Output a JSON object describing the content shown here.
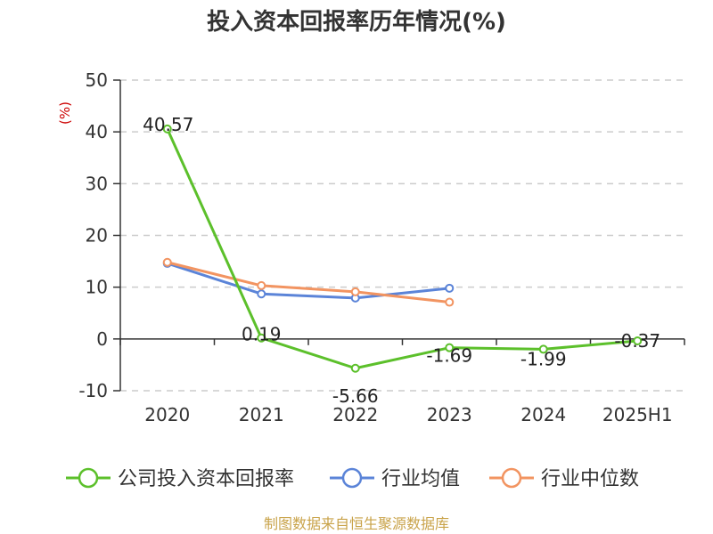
{
  "chart_data": {
    "type": "line",
    "title": "投入资本回报率历年情况(%)",
    "ylabel": "(%)",
    "xlabel": "",
    "categories": [
      "2020",
      "2021",
      "2022",
      "2023",
      "2024",
      "2025H1"
    ],
    "ylim": [
      -10,
      50
    ],
    "yticks": [
      -10,
      0,
      10,
      20,
      30,
      40,
      50
    ],
    "grid": true,
    "legend_position": "bottom",
    "series": [
      {
        "name": "公司投入资本回报率",
        "color": "#5cc02b",
        "values": [
          40.57,
          0.19,
          -5.66,
          -1.69,
          -1.99,
          -0.37
        ],
        "labels": [
          "40.57",
          "0.19",
          "-5.66",
          "-1.69",
          "-1.99",
          "-0.37"
        ]
      },
      {
        "name": "行业均值",
        "color": "#5b84d8",
        "values": [
          14.6,
          8.7,
          7.9,
          9.8,
          null,
          null
        ]
      },
      {
        "name": "行业中位数",
        "color": "#f29461",
        "values": [
          14.8,
          10.3,
          9.1,
          7.1,
          null,
          null
        ]
      }
    ],
    "source": "制图数据来自恒生聚源数据库"
  }
}
